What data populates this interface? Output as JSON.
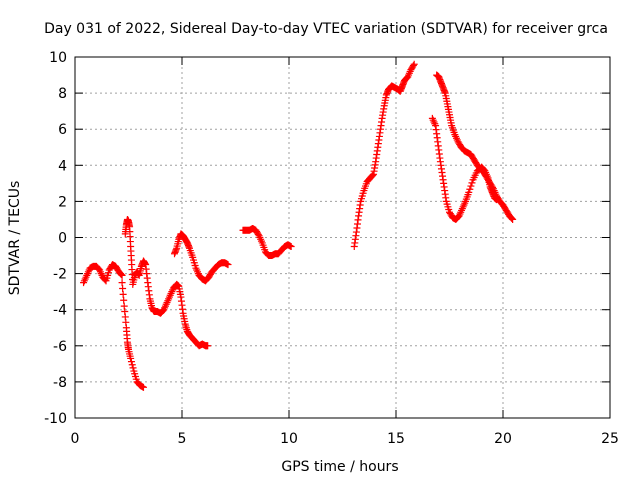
{
  "chart_data": {
    "type": "scatter",
    "title": "Day 031 of 2022, Sidereal Day-to-day VTEC variation (SDTVAR) for receiver grca",
    "xlabel": "GPS time / hours",
    "ylabel": "SDTVAR / TECUs",
    "xlim": [
      0,
      25
    ],
    "ylim": [
      -10,
      10
    ],
    "xticks": [
      0,
      5,
      10,
      15,
      20,
      25
    ],
    "yticks": [
      -10,
      -8,
      -6,
      -4,
      -2,
      0,
      2,
      4,
      6,
      8,
      10
    ],
    "grid": true,
    "marker": "+",
    "series": [
      {
        "name": "SDTVAR",
        "color": "#ff0000",
        "segments": [
          {
            "x": [
              0.4,
              0.55,
              0.7,
              0.85,
              1.0,
              1.15,
              1.3,
              1.45,
              1.6,
              1.75,
              1.9,
              2.05,
              2.2
            ],
            "y": [
              -2.5,
              -2.1,
              -1.7,
              -1.6,
              -1.6,
              -1.8,
              -2.2,
              -2.4,
              -1.8,
              -1.5,
              -1.6,
              -1.9,
              -2.1
            ]
          },
          {
            "x": [
              2.2,
              2.3,
              2.4,
              2.45,
              2.5,
              2.6,
              2.75,
              2.9,
              3.05,
              3.2
            ],
            "y": [
              -2.5,
              -3.8,
              -5.0,
              -5.8,
              -6.2,
              -6.7,
              -7.4,
              -8.0,
              -8.2,
              -8.3
            ]
          },
          {
            "x": [
              2.35,
              2.4,
              2.45,
              2.5,
              2.55,
              2.6,
              2.65,
              2.7,
              2.8,
              2.9,
              3.0,
              3.1,
              3.2,
              3.3,
              3.4,
              3.5,
              3.6,
              3.7,
              3.85,
              4.0,
              4.15,
              4.3,
              4.45,
              4.6,
              4.75,
              4.85,
              4.95,
              5.05,
              5.15,
              5.25,
              5.35,
              5.5,
              5.65,
              5.8,
              5.95,
              6.1,
              6.2
            ],
            "y": [
              0.2,
              0.7,
              1.0,
              0.9,
              0.6,
              -0.5,
              -1.5,
              -2.6,
              -2.1,
              -1.9,
              -2.1,
              -1.6,
              -1.3,
              -1.5,
              -2.5,
              -3.4,
              -3.9,
              -4.1,
              -4.1,
              -4.2,
              -4.0,
              -3.6,
              -3.2,
              -2.8,
              -2.6,
              -2.7,
              -3.3,
              -4.2,
              -4.8,
              -5.2,
              -5.4,
              -5.6,
              -5.8,
              -6.0,
              -5.9,
              -6.0,
              -6.0
            ]
          },
          {
            "x": [
              4.65,
              4.75,
              4.85,
              4.95,
              5.05,
              5.15,
              5.25,
              5.35,
              5.5,
              5.65,
              5.8,
              5.95,
              6.1,
              6.25,
              6.4,
              6.55,
              6.7,
              6.85,
              7.0,
              7.15
            ],
            "y": [
              -0.9,
              -0.6,
              -0.1,
              0.2,
              0.1,
              -0.1,
              -0.3,
              -0.6,
              -1.1,
              -1.7,
              -2.1,
              -2.3,
              -2.4,
              -2.2,
              -1.9,
              -1.7,
              -1.5,
              -1.4,
              -1.4,
              -1.5
            ]
          },
          {
            "x": [
              7.85,
              8.0,
              8.15,
              8.3,
              8.45,
              8.6,
              8.75,
              8.9,
              9.05,
              9.2,
              9.35,
              9.5,
              9.65,
              9.8,
              9.95,
              10.1
            ],
            "y": [
              0.4,
              0.4,
              0.4,
              0.5,
              0.4,
              0.1,
              -0.3,
              -0.8,
              -1.0,
              -1.0,
              -0.9,
              -0.9,
              -0.7,
              -0.5,
              -0.4,
              -0.5
            ]
          },
          {
            "x": [
              13.05,
              13.15,
              13.25,
              13.35,
              13.5,
              13.65,
              13.8,
              13.95,
              14.05,
              14.15,
              14.25,
              14.35,
              14.45,
              14.55,
              14.65,
              14.8,
              14.95,
              15.1,
              15.2,
              15.3,
              15.4,
              15.55,
              15.7,
              15.85
            ],
            "y": [
              -0.5,
              0.3,
              1.2,
              2.0,
              2.6,
              3.1,
              3.3,
              3.5,
              4.2,
              5.0,
              5.8,
              6.6,
              7.3,
              7.9,
              8.2,
              8.4,
              8.3,
              8.2,
              8.1,
              8.4,
              8.7,
              8.9,
              9.3,
              9.6
            ]
          },
          {
            "x": [
              16.7,
              16.85,
              16.95,
              17.05,
              17.15,
              17.25,
              17.35,
              17.5,
              17.65,
              17.8,
              17.95,
              18.1,
              18.25,
              18.4,
              18.6,
              18.8,
              19.0,
              19.15,
              19.3,
              19.4,
              19.5,
              19.6,
              19.7
            ],
            "y": [
              6.6,
              6.2,
              5.3,
              4.4,
              3.6,
              2.8,
              2.0,
              1.4,
              1.1,
              1.0,
              1.2,
              1.6,
              2.0,
              2.5,
              3.2,
              3.7,
              3.9,
              3.7,
              3.3,
              2.8,
              2.5,
              2.2,
              2.1
            ]
          },
          {
            "x": [
              16.9,
              17.0,
              17.1,
              17.2,
              17.3,
              17.4,
              17.5,
              17.6,
              17.75,
              17.9,
              18.05,
              18.2,
              18.35,
              18.5,
              18.65,
              18.8,
              18.95,
              19.1,
              19.25,
              19.4,
              19.55,
              19.7,
              19.85,
              20.0,
              20.15,
              20.3,
              20.45
            ],
            "y": [
              9.0,
              8.9,
              8.6,
              8.3,
              8.0,
              7.4,
              6.8,
              6.2,
              5.7,
              5.3,
              5.0,
              4.8,
              4.7,
              4.6,
              4.3,
              4.0,
              3.8,
              3.6,
              3.3,
              3.0,
              2.7,
              2.3,
              2.0,
              1.8,
              1.5,
              1.2,
              1.0
            ]
          }
        ]
      }
    ]
  }
}
